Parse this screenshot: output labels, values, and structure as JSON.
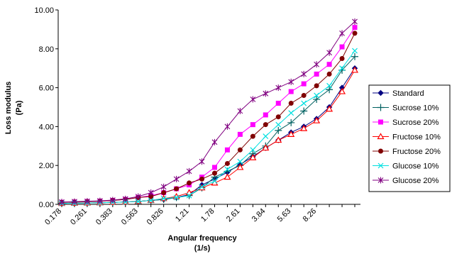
{
  "chart_data": {
    "type": "line",
    "title": "",
    "xlabel_line1": "Angular frequency",
    "xlabel_line2": "(1/s)",
    "ylabel_line1": "Loss modulus",
    "ylabel_line2": "(Pa)",
    "ylim": [
      0,
      10
    ],
    "yticks": [
      "0.00",
      "2.00",
      "4.00",
      "6.00",
      "8.00",
      "10.00"
    ],
    "x": [
      "0.178",
      "0.215",
      "0.261",
      "0.316",
      "0.383",
      "0.464",
      "0.563",
      "0.681",
      "0.826",
      "1",
      "1.21",
      "1.47",
      "1.78",
      "2.15",
      "2.61",
      "3.16",
      "3.84",
      "4.64",
      "5.63",
      "6.81",
      "8.26",
      "10",
      "12.1",
      "14.7"
    ],
    "xtick_labels": [
      "0.178",
      "0.261",
      "0.383",
      "0.563",
      "0.826",
      "1.21",
      "1.78",
      "2.61",
      "3.84",
      "5.63",
      "8.26"
    ],
    "grid": false,
    "legend_position": "right",
    "series": [
      {
        "name": "Standard",
        "color": "#000080",
        "marker": "diamond",
        "values": [
          0.05,
          0.06,
          0.07,
          0.08,
          0.1,
          0.12,
          0.15,
          0.2,
          0.25,
          0.35,
          0.5,
          1.0,
          1.3,
          1.65,
          2.05,
          2.45,
          2.9,
          3.3,
          3.7,
          4.0,
          4.4,
          5.0,
          6.0,
          7.0
        ]
      },
      {
        "name": "Sucrose 10%",
        "color": "#006060",
        "marker": "plus",
        "values": [
          0.05,
          0.06,
          0.07,
          0.08,
          0.1,
          0.12,
          0.15,
          0.2,
          0.25,
          0.35,
          0.45,
          0.85,
          1.4,
          1.7,
          2.0,
          2.6,
          3.0,
          3.8,
          4.2,
          4.8,
          5.4,
          5.9,
          6.9,
          7.6
        ]
      },
      {
        "name": "Sucrose 20%",
        "color": "#ff00ff",
        "marker": "square",
        "values": [
          0.1,
          0.12,
          0.14,
          0.16,
          0.2,
          0.25,
          0.35,
          0.45,
          0.6,
          0.8,
          1.0,
          1.4,
          1.9,
          2.8,
          3.6,
          4.1,
          4.6,
          5.2,
          5.8,
          6.2,
          6.7,
          7.2,
          8.1,
          9.1
        ]
      },
      {
        "name": "Fructose 10%",
        "color": "#ff0000",
        "marker": "triangle",
        "values": [
          0.05,
          0.06,
          0.07,
          0.08,
          0.1,
          0.12,
          0.15,
          0.2,
          0.3,
          0.4,
          0.6,
          0.85,
          1.1,
          1.4,
          1.9,
          2.4,
          2.9,
          3.3,
          3.6,
          3.9,
          4.3,
          4.9,
          5.8,
          6.9
        ]
      },
      {
        "name": "Fructose 20%",
        "color": "#800000",
        "marker": "circle",
        "values": [
          0.1,
          0.12,
          0.14,
          0.16,
          0.2,
          0.25,
          0.35,
          0.4,
          0.6,
          0.8,
          1.1,
          1.3,
          1.6,
          2.1,
          2.8,
          3.5,
          4.1,
          4.5,
          5.2,
          5.6,
          6.1,
          6.7,
          7.5,
          8.8
        ]
      },
      {
        "name": "Glucose 10%",
        "color": "#00e0e0",
        "marker": "x",
        "values": [
          0.05,
          0.06,
          0.07,
          0.08,
          0.1,
          0.12,
          0.15,
          0.2,
          0.3,
          0.35,
          0.45,
          0.9,
          1.2,
          1.8,
          2.2,
          2.8,
          3.5,
          4.1,
          4.7,
          5.2,
          5.6,
          6.1,
          7.0,
          7.9
        ]
      },
      {
        "name": "Glucose 20%",
        "color": "#800080",
        "marker": "star",
        "values": [
          0.12,
          0.14,
          0.16,
          0.18,
          0.22,
          0.28,
          0.4,
          0.6,
          0.9,
          1.3,
          1.7,
          2.2,
          3.2,
          4.0,
          4.8,
          5.4,
          5.7,
          6.0,
          6.3,
          6.7,
          7.2,
          7.8,
          8.8,
          9.4
        ]
      }
    ]
  }
}
